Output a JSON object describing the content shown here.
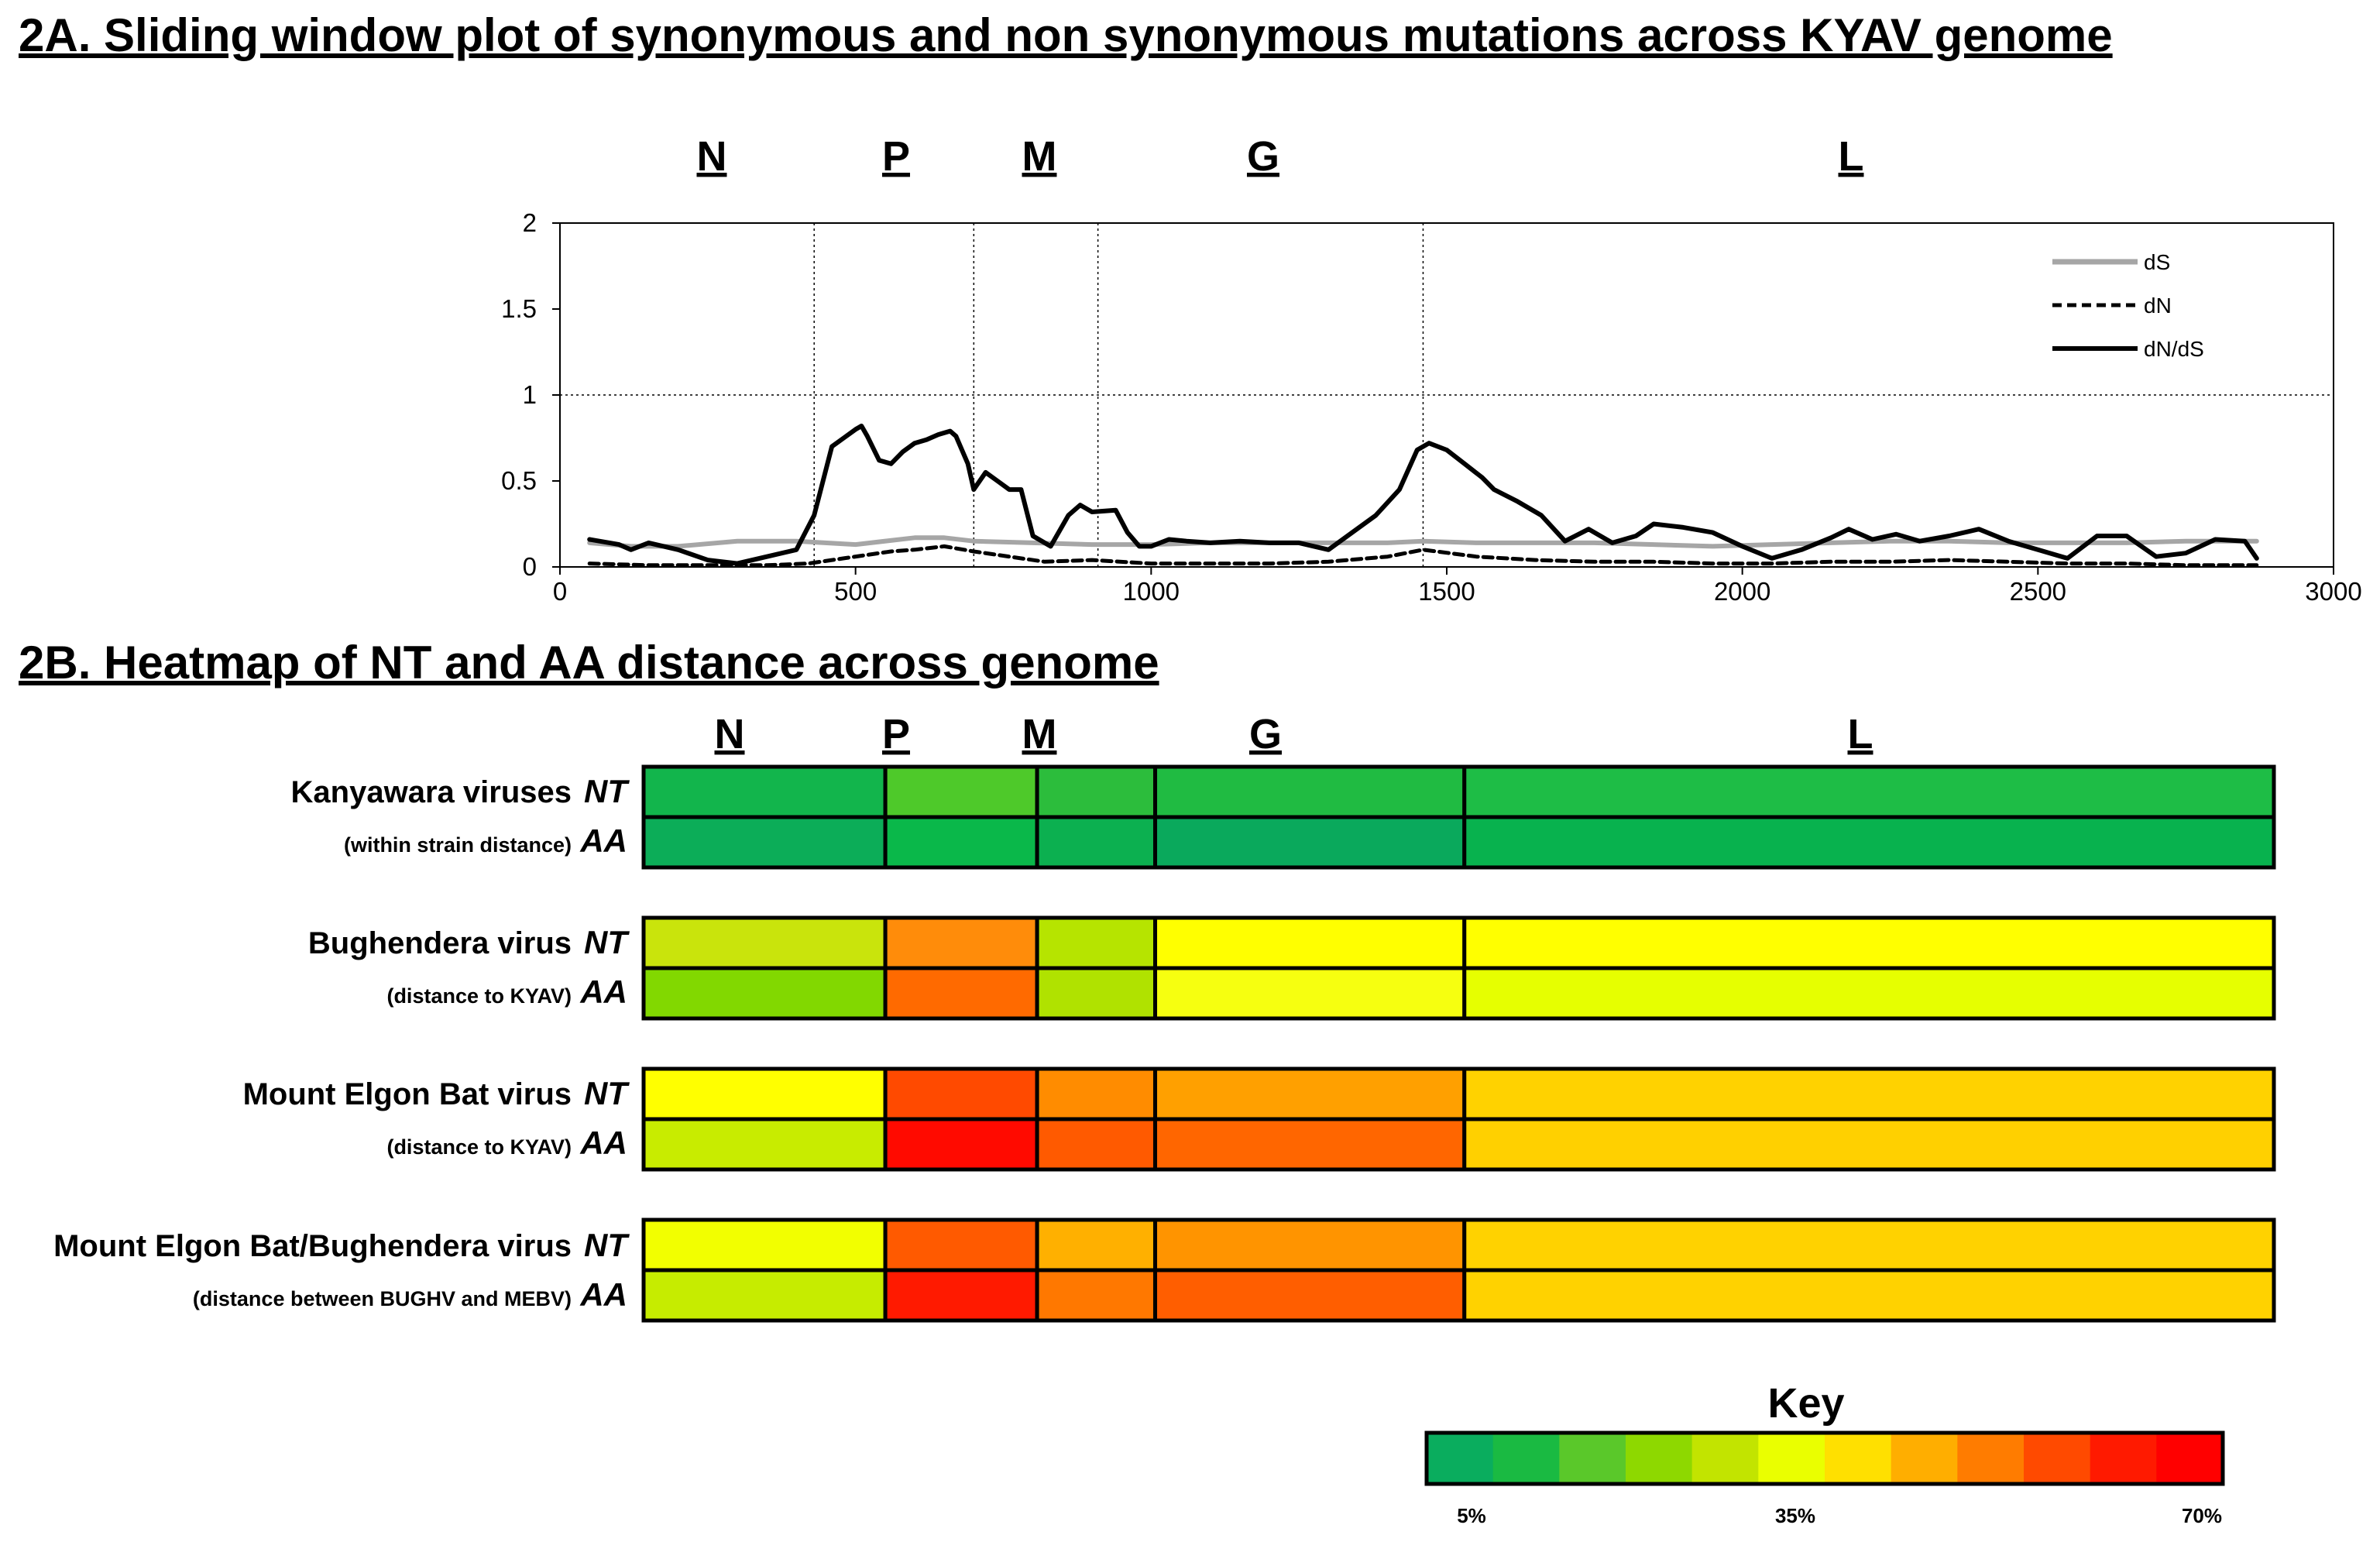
{
  "chart_data": [
    {
      "type": "line",
      "title": "2A. Sliding window plot of synonymous and non synonymous mutations across KYAV genome",
      "xlim": [
        0,
        3000
      ],
      "ylim": [
        0,
        2
      ],
      "xticks": [
        "0",
        "500",
        "1000",
        "1500",
        "2000",
        "2500",
        "3000"
      ],
      "yticks": [
        "0",
        "0.5",
        "1",
        "1.5",
        "2"
      ],
      "reference_line_y": 1,
      "gene_labels": [
        "N",
        "P",
        "M",
        "G",
        "L"
      ],
      "gene_boundaries": [
        430,
        700,
        910,
        1460
      ],
      "series": [
        {
          "name": "dS",
          "color": "#a6a6a6",
          "style": "solid",
          "x": [
            50,
            120,
            200,
            300,
            400,
            500,
            600,
            650,
            700,
            800,
            900,
            1000,
            1100,
            1200,
            1300,
            1400,
            1460,
            1550,
            1650,
            1750,
            1850,
            1950,
            2050,
            2150,
            2250,
            2350,
            2450,
            2550,
            2650,
            2750,
            2870
          ],
          "values": [
            0.14,
            0.12,
            0.12,
            0.15,
            0.15,
            0.13,
            0.17,
            0.17,
            0.15,
            0.14,
            0.13,
            0.13,
            0.14,
            0.14,
            0.14,
            0.14,
            0.15,
            0.14,
            0.14,
            0.14,
            0.13,
            0.12,
            0.13,
            0.14,
            0.15,
            0.15,
            0.14,
            0.14,
            0.14,
            0.15,
            0.15
          ]
        },
        {
          "name": "dN",
          "color": "#000000",
          "style": "dashed",
          "x": [
            50,
            150,
            250,
            350,
            420,
            480,
            560,
            600,
            650,
            700,
            760,
            820,
            900,
            1000,
            1100,
            1200,
            1300,
            1400,
            1460,
            1550,
            1650,
            1750,
            1850,
            1950,
            2050,
            2150,
            2250,
            2350,
            2450,
            2550,
            2650,
            2750,
            2870
          ],
          "values": [
            0.02,
            0.01,
            0.01,
            0.01,
            0.02,
            0.05,
            0.09,
            0.1,
            0.12,
            0.09,
            0.06,
            0.03,
            0.04,
            0.02,
            0.02,
            0.02,
            0.03,
            0.06,
            0.1,
            0.06,
            0.04,
            0.03,
            0.03,
            0.02,
            0.02,
            0.03,
            0.03,
            0.04,
            0.03,
            0.02,
            0.02,
            0.01,
            0.01
          ]
        },
        {
          "name": "dN/dS",
          "color": "#000000",
          "style": "solid",
          "x": [
            50,
            100,
            120,
            150,
            200,
            250,
            300,
            350,
            400,
            430,
            460,
            480,
            500,
            510,
            520,
            540,
            560,
            580,
            600,
            620,
            640,
            660,
            670,
            690,
            700,
            720,
            740,
            760,
            780,
            800,
            830,
            860,
            880,
            900,
            940,
            960,
            980,
            1000,
            1030,
            1060,
            1100,
            1150,
            1200,
            1250,
            1300,
            1340,
            1380,
            1420,
            1450,
            1470,
            1500,
            1530,
            1560,
            1580,
            1620,
            1660,
            1700,
            1740,
            1780,
            1820,
            1850,
            1900,
            1950,
            2000,
            2050,
            2100,
            2150,
            2180,
            2220,
            2260,
            2300,
            2350,
            2400,
            2450,
            2500,
            2550,
            2600,
            2650,
            2700,
            2750,
            2800,
            2850,
            2870
          ],
          "values": [
            0.16,
            0.13,
            0.1,
            0.14,
            0.1,
            0.04,
            0.02,
            0.06,
            0.1,
            0.3,
            0.7,
            0.75,
            0.8,
            0.82,
            0.76,
            0.62,
            0.6,
            0.67,
            0.72,
            0.74,
            0.77,
            0.79,
            0.76,
            0.6,
            0.45,
            0.55,
            0.5,
            0.45,
            0.45,
            0.18,
            0.12,
            0.3,
            0.36,
            0.32,
            0.33,
            0.2,
            0.12,
            0.12,
            0.16,
            0.15,
            0.14,
            0.15,
            0.14,
            0.14,
            0.1,
            0.2,
            0.3,
            0.45,
            0.68,
            0.72,
            0.68,
            0.6,
            0.52,
            0.45,
            0.38,
            0.3,
            0.15,
            0.22,
            0.14,
            0.18,
            0.25,
            0.23,
            0.2,
            0.12,
            0.05,
            0.1,
            0.17,
            0.22,
            0.16,
            0.19,
            0.15,
            0.18,
            0.22,
            0.15,
            0.1,
            0.05,
            0.18,
            0.18,
            0.06,
            0.08,
            0.16,
            0.15,
            0.05
          ]
        }
      ]
    },
    {
      "type": "heatmap",
      "title": "2B. Heatmap of NT and AA distance across genome",
      "columns": [
        "N",
        "P",
        "M",
        "G",
        "L"
      ],
      "column_bounds_nt": [
        0,
        430,
        700,
        910,
        1460,
        2900
      ],
      "groups": [
        {
          "name": "Kanyawara viruses",
          "subtitle": "(within strain distance)",
          "rows": [
            {
              "label": "NT",
              "colors": [
                "#12b54c",
                "#4ec92a",
                "#2cbd3c",
                "#20bb42",
                "#1ebd46"
              ]
            },
            {
              "label": "AA",
              "colors": [
                "#0cad58",
                "#0ab84a",
                "#0cb050",
                "#0aa95c",
                "#08b24e"
              ]
            }
          ]
        },
        {
          "name": "Bughendera virus",
          "subtitle": "(distance to KYAV)",
          "rows": [
            {
              "label": "NT",
              "colors": [
                "#c9e40c",
                "#ff8c0a",
                "#b6e400",
                "#ffff00",
                "#ffff00"
              ]
            },
            {
              "label": "AA",
              "colors": [
                "#82d800",
                "#ff6a00",
                "#b0e200",
                "#f6ff10",
                "#e6ff00"
              ]
            }
          ]
        },
        {
          "name": "Mount Elgon Bat virus",
          "subtitle": "(distance to KYAV)",
          "rows": [
            {
              "label": "NT",
              "colors": [
                "#ffff00",
                "#ff4a00",
                "#ff8c00",
                "#ffa000",
                "#ffd200"
              ]
            },
            {
              "label": "AA",
              "colors": [
                "#c8ec00",
                "#ff0a00",
                "#ff5a00",
                "#ff6600",
                "#ffd000"
              ]
            }
          ]
        },
        {
          "name": "Mount Elgon Bat/Bughendera virus",
          "subtitle": "(distance between BUGHV and MEBV)",
          "rows": [
            {
              "label": "NT",
              "colors": [
                "#f2ff00",
                "#ff5a00",
                "#ffb000",
                "#ff9400",
                "#ffd200"
              ]
            },
            {
              "label": "AA",
              "colors": [
                "#c6ec00",
                "#ff1a00",
                "#ff7800",
                "#ff5e00",
                "#ffd200"
              ]
            }
          ]
        }
      ],
      "key": {
        "title": "Key",
        "colors": [
          "#0aad5e",
          "#1aba42",
          "#5ac82a",
          "#8ed800",
          "#c2e400",
          "#eaff00",
          "#ffe000",
          "#ffae00",
          "#ff7c00",
          "#ff4a00",
          "#ff1a00",
          "#ff0000"
        ],
        "labels": [
          "5%",
          "35%",
          "70%"
        ]
      }
    }
  ]
}
